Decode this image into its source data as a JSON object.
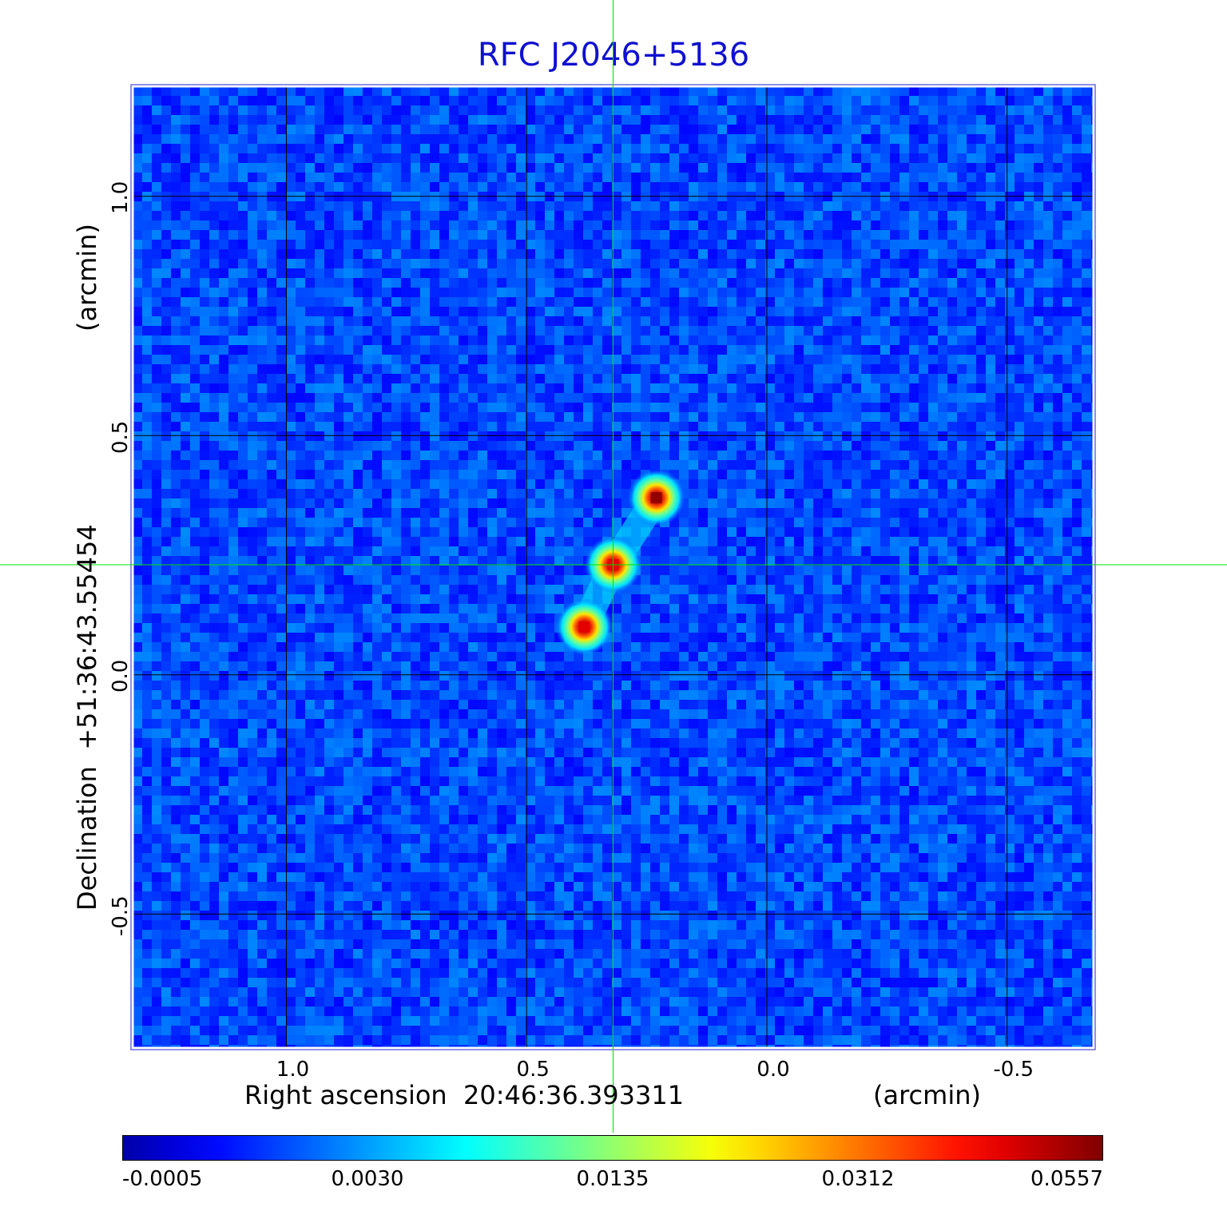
{
  "chart_data": {
    "type": "heatmap",
    "title": "RFC J2046+5136",
    "xlabel": "Right ascension  20:46:36.393311",
    "xunit": "(arcmin)",
    "ylabel": "Declination  +51:36:43.55454",
    "yunit": "(arcmin)",
    "x_ticks": [
      "1.0",
      "0.5",
      "0.0",
      "-0.5"
    ],
    "y_ticks": [
      "1.0",
      "0.5",
      "0.0",
      "-0.5"
    ],
    "x_tick_values": [
      1.0,
      0.5,
      0.0,
      -0.5
    ],
    "y_tick_values": [
      1.0,
      0.5,
      0.0,
      -0.5
    ],
    "xlim": [
      1.32,
      -0.68
    ],
    "ylim": [
      -0.78,
      1.23
    ],
    "grid": true,
    "crosshair": {
      "x": 0.32,
      "y": 0.23,
      "color": "#00e000"
    },
    "colormap": "jet",
    "colorbar": {
      "ticks": [
        "-0.0005",
        "0.0030",
        "0.0135",
        "0.0312",
        "0.0557"
      ],
      "tick_fractions": [
        0.0,
        0.25,
        0.5,
        0.75,
        1.0
      ]
    },
    "components": [
      {
        "x": 0.23,
        "y": 0.37,
        "peak": 0.0557
      },
      {
        "x": 0.32,
        "y": 0.23,
        "peak": 0.045
      },
      {
        "x": 0.38,
        "y": 0.1,
        "peak": 0.04
      }
    ],
    "background_level": -0.0005
  }
}
